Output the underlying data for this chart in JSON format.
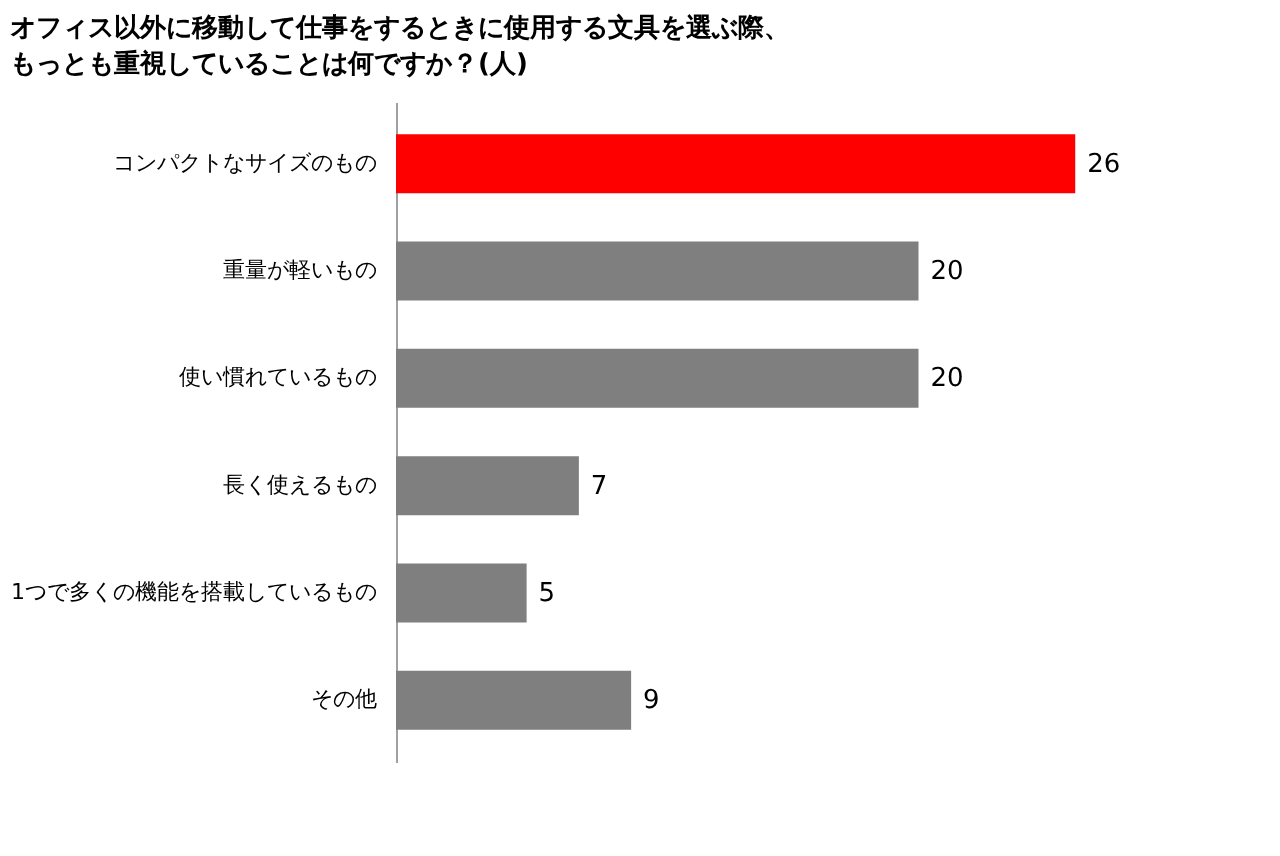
{
  "chart_data": {
    "type": "bar",
    "orientation": "horizontal",
    "title": "オフィス以外に移動して仕事をするときに使用する文具を選ぶ際、もっとも重視していることは何ですか？(人)",
    "categories": [
      "コンパクトなサイズのもの",
      "重量が軽いもの",
      "使い慣れているもの",
      "長く使えるもの",
      "1つで多くの機能を搭載しているもの",
      "その他"
    ],
    "values": [
      26,
      20,
      20,
      7,
      5,
      9
    ],
    "colors": [
      "#ff0000",
      "#7f7f7f",
      "#7f7f7f",
      "#7f7f7f",
      "#7f7f7f",
      "#7f7f7f"
    ],
    "data_labels": true,
    "grid": false
  }
}
